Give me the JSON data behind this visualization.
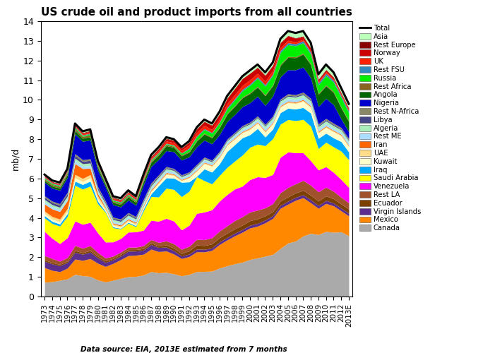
{
  "title": "US crude oil and product imports from all countries",
  "ylabel": "mb/d",
  "datasource": "Data source: EIA, 2013E estimated from 7 months",
  "years": [
    1973,
    1974,
    1975,
    1976,
    1977,
    1978,
    1979,
    1980,
    1981,
    1982,
    1983,
    1984,
    1985,
    1986,
    1987,
    1988,
    1989,
    1990,
    1991,
    1992,
    1993,
    1994,
    1995,
    1996,
    1997,
    1998,
    1999,
    2000,
    2001,
    2002,
    2003,
    2004,
    2005,
    2006,
    2007,
    2008,
    2009,
    2010,
    2011,
    2012,
    2013
  ],
  "series": {
    "Canada": [
      0.5,
      0.55,
      0.6,
      0.62,
      0.65,
      0.68,
      0.62,
      0.52,
      0.5,
      0.55,
      0.6,
      0.63,
      0.68,
      0.72,
      0.75,
      0.8,
      0.88,
      0.92,
      0.98,
      1.05,
      1.1,
      1.18,
      1.25,
      1.35,
      1.45,
      1.5,
      1.55,
      1.62,
      1.68,
      1.75,
      1.85,
      2.0,
      2.18,
      2.28,
      2.45,
      2.52,
      2.55,
      2.6,
      2.72,
      2.85,
      2.68
    ],
    "Mexico": [
      0.52,
      0.42,
      0.32,
      0.38,
      0.45,
      0.5,
      0.55,
      0.53,
      0.53,
      0.57,
      0.62,
      0.67,
      0.72,
      0.7,
      0.68,
      0.72,
      0.78,
      0.8,
      0.82,
      0.85,
      0.88,
      0.92,
      1.02,
      1.12,
      1.22,
      1.28,
      1.35,
      1.38,
      1.38,
      1.45,
      1.58,
      1.68,
      1.58,
      1.68,
      1.55,
      1.22,
      1.08,
      1.12,
      1.12,
      0.92,
      0.88
    ],
    "Virgin Islands": [
      0.22,
      0.24,
      0.22,
      0.2,
      0.2,
      0.2,
      0.2,
      0.17,
      0.14,
      0.12,
      0.12,
      0.14,
      0.14,
      0.14,
      0.14,
      0.14,
      0.14,
      0.14,
      0.12,
      0.12,
      0.12,
      0.12,
      0.12,
      0.12,
      0.12,
      0.12,
      0.12,
      0.12,
      0.12,
      0.12,
      0.12,
      0.12,
      0.12,
      0.12,
      0.12,
      0.12,
      0.12,
      0.12,
      0.12,
      0.12,
      0.12
    ],
    "Ecuador": [
      0.05,
      0.05,
      0.05,
      0.05,
      0.05,
      0.05,
      0.05,
      0.05,
      0.05,
      0.05,
      0.05,
      0.05,
      0.05,
      0.05,
      0.05,
      0.05,
      0.08,
      0.1,
      0.12,
      0.15,
      0.18,
      0.18,
      0.2,
      0.2,
      0.2,
      0.2,
      0.2,
      0.2,
      0.2,
      0.18,
      0.18,
      0.18,
      0.18,
      0.18,
      0.18,
      0.18,
      0.18,
      0.18,
      0.18,
      0.18,
      0.18
    ],
    "Rest LA": [
      0.15,
      0.15,
      0.12,
      0.12,
      0.15,
      0.15,
      0.15,
      0.12,
      0.1,
      0.08,
      0.08,
      0.08,
      0.08,
      0.1,
      0.1,
      0.12,
      0.15,
      0.18,
      0.2,
      0.22,
      0.25,
      0.28,
      0.3,
      0.32,
      0.35,
      0.38,
      0.38,
      0.38,
      0.38,
      0.35,
      0.35,
      0.35,
      0.38,
      0.38,
      0.4,
      0.4,
      0.38,
      0.35,
      0.32,
      0.3,
      0.28
    ],
    "Venezuela": [
      0.85,
      0.75,
      0.65,
      0.7,
      0.72,
      0.78,
      0.72,
      0.62,
      0.55,
      0.48,
      0.45,
      0.48,
      0.52,
      0.52,
      0.58,
      0.72,
      0.82,
      0.92,
      0.92,
      1.0,
      1.15,
      1.3,
      1.38,
      1.42,
      1.48,
      1.45,
      1.38,
      1.42,
      1.45,
      1.32,
      1.28,
      1.48,
      1.45,
      1.28,
      1.12,
      0.98,
      0.9,
      0.82,
      0.8,
      0.78,
      0.68
    ],
    "Saudi Arabia": [
      0.48,
      0.55,
      0.65,
      0.75,
      1.05,
      1.15,
      1.12,
      0.92,
      1.02,
      0.48,
      0.32,
      0.28,
      0.18,
      0.65,
      0.72,
      0.82,
      1.1,
      1.28,
      1.58,
      1.62,
      1.62,
      1.48,
      1.28,
      1.22,
      1.28,
      1.28,
      1.4,
      1.42,
      1.42,
      1.38,
      1.58,
      1.38,
      1.32,
      1.32,
      1.35,
      1.38,
      0.88,
      0.98,
      1.08,
      1.25,
      1.22
    ],
    "Iraq": [
      0.08,
      0.08,
      0.08,
      0.1,
      0.12,
      0.15,
      0.15,
      0.08,
      0.03,
      0.03,
      0.02,
      0.03,
      0.03,
      0.06,
      0.08,
      0.38,
      0.38,
      0.46,
      0.68,
      0.45,
      0.02,
      0.55,
      0.58,
      0.55,
      0.75,
      0.75,
      0.78,
      0.55,
      0.68,
      0.38,
      0.42,
      0.48,
      0.46,
      0.48,
      0.48,
      0.52,
      0.42,
      0.36,
      0.38,
      0.42,
      0.35
    ],
    "Kuwait": [
      0.08,
      0.08,
      0.08,
      0.08,
      0.1,
      0.1,
      0.1,
      0.08,
      0.06,
      0.06,
      0.04,
      0.04,
      0.04,
      0.06,
      0.06,
      0.08,
      0.12,
      0.1,
      0.06,
      0.18,
      0.22,
      0.25,
      0.28,
      0.28,
      0.28,
      0.25,
      0.22,
      0.22,
      0.22,
      0.2,
      0.22,
      0.22,
      0.22,
      0.22,
      0.25,
      0.22,
      0.22,
      0.22,
      0.25,
      0.25,
      0.22
    ],
    "UAE": [
      0.08,
      0.1,
      0.1,
      0.1,
      0.1,
      0.1,
      0.1,
      0.08,
      0.06,
      0.04,
      0.04,
      0.04,
      0.04,
      0.04,
      0.04,
      0.04,
      0.04,
      0.04,
      0.04,
      0.04,
      0.04,
      0.04,
      0.04,
      0.04,
      0.04,
      0.04,
      0.04,
      0.04,
      0.04,
      0.04,
      0.04,
      0.04,
      0.04,
      0.04,
      0.04,
      0.04,
      0.04,
      0.04,
      0.04,
      0.04,
      0.04
    ],
    "Iran": [
      0.25,
      0.28,
      0.28,
      0.28,
      0.32,
      0.32,
      0.2,
      0.08,
      0.03,
      0.03,
      0.03,
      0.03,
      0.03,
      0.03,
      0.03,
      0.03,
      0.03,
      0.03,
      0.03,
      0.03,
      0.03,
      0.03,
      0.03,
      0.03,
      0.03,
      0.03,
      0.03,
      0.03,
      0.03,
      0.03,
      0.03,
      0.03,
      0.03,
      0.03,
      0.03,
      0.03,
      0.03,
      0.03,
      0.03,
      0.03,
      0.03
    ],
    "Rest ME": [
      0.08,
      0.08,
      0.08,
      0.08,
      0.08,
      0.08,
      0.08,
      0.06,
      0.06,
      0.06,
      0.06,
      0.06,
      0.06,
      0.06,
      0.06,
      0.08,
      0.08,
      0.08,
      0.08,
      0.08,
      0.1,
      0.1,
      0.1,
      0.1,
      0.1,
      0.1,
      0.1,
      0.1,
      0.1,
      0.1,
      0.1,
      0.1,
      0.1,
      0.1,
      0.1,
      0.1,
      0.1,
      0.1,
      0.1,
      0.1,
      0.1
    ],
    "Algeria": [
      0.08,
      0.08,
      0.08,
      0.08,
      0.08,
      0.08,
      0.08,
      0.06,
      0.06,
      0.06,
      0.06,
      0.06,
      0.06,
      0.06,
      0.06,
      0.06,
      0.06,
      0.06,
      0.06,
      0.06,
      0.06,
      0.06,
      0.06,
      0.06,
      0.06,
      0.06,
      0.08,
      0.08,
      0.08,
      0.1,
      0.1,
      0.1,
      0.1,
      0.1,
      0.1,
      0.1,
      0.1,
      0.1,
      0.1,
      0.1,
      0.1
    ],
    "Libya": [
      0.08,
      0.08,
      0.08,
      0.08,
      0.08,
      0.08,
      0.08,
      0.06,
      0.05,
      0.04,
      0.04,
      0.04,
      0.04,
      0.04,
      0.04,
      0.04,
      0.04,
      0.04,
      0.04,
      0.04,
      0.04,
      0.04,
      0.04,
      0.04,
      0.04,
      0.04,
      0.04,
      0.04,
      0.04,
      0.04,
      0.04,
      0.04,
      0.04,
      0.04,
      0.04,
      0.04,
      0.04,
      0.04,
      0.04,
      0.04,
      0.04
    ],
    "Rest N-Africa": [
      0.05,
      0.05,
      0.05,
      0.05,
      0.05,
      0.05,
      0.05,
      0.04,
      0.04,
      0.04,
      0.04,
      0.04,
      0.04,
      0.04,
      0.04,
      0.04,
      0.04,
      0.04,
      0.04,
      0.04,
      0.04,
      0.04,
      0.04,
      0.04,
      0.04,
      0.04,
      0.04,
      0.04,
      0.04,
      0.04,
      0.04,
      0.04,
      0.06,
      0.06,
      0.06,
      0.06,
      0.06,
      0.06,
      0.06,
      0.06,
      0.06
    ],
    "Nigeria": [
      0.48,
      0.48,
      0.5,
      0.52,
      0.58,
      0.6,
      0.58,
      0.52,
      0.48,
      0.42,
      0.4,
      0.4,
      0.38,
      0.48,
      0.5,
      0.52,
      0.58,
      0.68,
      0.7,
      0.72,
      0.78,
      0.8,
      0.8,
      0.8,
      0.82,
      0.82,
      0.85,
      0.85,
      0.85,
      0.82,
      0.88,
      0.92,
      0.98,
      1.02,
      1.02,
      0.82,
      0.72,
      0.8,
      0.78,
      0.38,
      0.3
    ],
    "Angola": [
      0.06,
      0.08,
      0.08,
      0.1,
      0.1,
      0.1,
      0.1,
      0.08,
      0.08,
      0.08,
      0.08,
      0.1,
      0.1,
      0.12,
      0.12,
      0.15,
      0.18,
      0.18,
      0.2,
      0.22,
      0.25,
      0.28,
      0.3,
      0.32,
      0.35,
      0.38,
      0.4,
      0.4,
      0.4,
      0.42,
      0.45,
      0.48,
      0.5,
      0.5,
      0.52,
      0.52,
      0.5,
      0.5,
      0.52,
      0.48,
      0.45
    ],
    "Rest Africa": [
      0.06,
      0.06,
      0.06,
      0.06,
      0.06,
      0.06,
      0.06,
      0.05,
      0.04,
      0.04,
      0.04,
      0.04,
      0.04,
      0.04,
      0.04,
      0.04,
      0.04,
      0.04,
      0.04,
      0.04,
      0.04,
      0.04,
      0.04,
      0.04,
      0.04,
      0.04,
      0.04,
      0.04,
      0.04,
      0.04,
      0.04,
      0.04,
      0.04,
      0.04,
      0.04,
      0.04,
      0.04,
      0.04,
      0.04,
      0.04,
      0.04
    ],
    "Russia": [
      0.03,
      0.03,
      0.03,
      0.03,
      0.03,
      0.03,
      0.03,
      0.03,
      0.03,
      0.03,
      0.03,
      0.03,
      0.03,
      0.03,
      0.03,
      0.03,
      0.03,
      0.03,
      0.08,
      0.12,
      0.15,
      0.18,
      0.18,
      0.2,
      0.22,
      0.25,
      0.28,
      0.32,
      0.35,
      0.38,
      0.42,
      0.5,
      0.48,
      0.45,
      0.42,
      0.38,
      0.35,
      0.38,
      0.4,
      0.42,
      0.35
    ],
    "Rest FSU": [
      0.02,
      0.02,
      0.02,
      0.02,
      0.02,
      0.02,
      0.02,
      0.02,
      0.02,
      0.02,
      0.02,
      0.02,
      0.02,
      0.02,
      0.02,
      0.02,
      0.02,
      0.02,
      0.02,
      0.04,
      0.04,
      0.04,
      0.04,
      0.04,
      0.06,
      0.06,
      0.06,
      0.06,
      0.06,
      0.06,
      0.06,
      0.08,
      0.08,
      0.08,
      0.08,
      0.08,
      0.08,
      0.08,
      0.08,
      0.08,
      0.08
    ],
    "UK": [
      0.02,
      0.02,
      0.02,
      0.02,
      0.02,
      0.04,
      0.04,
      0.04,
      0.04,
      0.04,
      0.04,
      0.04,
      0.04,
      0.04,
      0.04,
      0.06,
      0.08,
      0.1,
      0.12,
      0.15,
      0.15,
      0.15,
      0.15,
      0.15,
      0.18,
      0.18,
      0.18,
      0.18,
      0.15,
      0.15,
      0.15,
      0.12,
      0.1,
      0.08,
      0.06,
      0.06,
      0.06,
      0.06,
      0.06,
      0.06,
      0.06
    ],
    "Norway": [
      0.02,
      0.02,
      0.02,
      0.02,
      0.02,
      0.02,
      0.02,
      0.02,
      0.02,
      0.02,
      0.02,
      0.02,
      0.02,
      0.04,
      0.04,
      0.06,
      0.08,
      0.08,
      0.1,
      0.12,
      0.15,
      0.18,
      0.2,
      0.22,
      0.25,
      0.28,
      0.3,
      0.28,
      0.25,
      0.25,
      0.22,
      0.2,
      0.18,
      0.15,
      0.12,
      0.1,
      0.08,
      0.08,
      0.06,
      0.06,
      0.06
    ],
    "Rest Europe": [
      0.02,
      0.02,
      0.02,
      0.02,
      0.02,
      0.02,
      0.02,
      0.02,
      0.02,
      0.02,
      0.02,
      0.02,
      0.02,
      0.02,
      0.02,
      0.02,
      0.02,
      0.02,
      0.02,
      0.02,
      0.02,
      0.02,
      0.02,
      0.02,
      0.02,
      0.02,
      0.02,
      0.02,
      0.02,
      0.02,
      0.02,
      0.02,
      0.02,
      0.02,
      0.02,
      0.02,
      0.02,
      0.02,
      0.02,
      0.02,
      0.02
    ],
    "Asia": [
      0.04,
      0.04,
      0.04,
      0.04,
      0.04,
      0.04,
      0.04,
      0.04,
      0.04,
      0.04,
      0.04,
      0.04,
      0.04,
      0.04,
      0.04,
      0.04,
      0.04,
      0.04,
      0.04,
      0.04,
      0.06,
      0.08,
      0.08,
      0.1,
      0.1,
      0.1,
      0.1,
      0.12,
      0.12,
      0.12,
      0.12,
      0.15,
      0.18,
      0.2,
      0.2,
      0.2,
      0.2,
      0.2,
      0.2,
      0.2,
      0.18
    ]
  },
  "total": [
    6.2,
    5.9,
    5.8,
    6.5,
    8.8,
    8.4,
    8.5,
    6.9,
    6.0,
    5.1,
    5.0,
    5.4,
    5.1,
    6.2,
    7.2,
    7.6,
    8.1,
    8.0,
    7.6,
    7.9,
    8.6,
    9.0,
    8.8,
    9.4,
    10.2,
    10.7,
    11.2,
    11.5,
    11.8,
    11.4,
    11.9,
    13.1,
    13.5,
    13.4,
    13.5,
    12.9,
    11.3,
    11.8,
    11.4,
    10.6,
    9.8
  ],
  "colors": {
    "Canada": "#aaaaaa",
    "Mexico": "#ff8800",
    "Virgin Islands": "#5b2d8e",
    "Ecuador": "#7b3f00",
    "Rest LA": "#a0522d",
    "Venezuela": "#ff00ff",
    "Saudi Arabia": "#ffff00",
    "Iraq": "#00aaff",
    "Kuwait": "#ffffcc",
    "UAE": "#ffdd88",
    "Iran": "#ff6600",
    "Rest ME": "#aaddff",
    "Algeria": "#aaeebb",
    "Libya": "#444488",
    "Rest N-Africa": "#888866",
    "Nigeria": "#0000cc",
    "Angola": "#006600",
    "Rest Africa": "#886622",
    "Russia": "#00ee00",
    "Rest FSU": "#3388bb",
    "UK": "#ff2200",
    "Norway": "#cc0000",
    "Rest Europe": "#880000",
    "Asia": "#bbffbb"
  },
  "stack_order": [
    "Canada",
    "Mexico",
    "Virgin Islands",
    "Ecuador",
    "Rest LA",
    "Venezuela",
    "Saudi Arabia",
    "Iraq",
    "Kuwait",
    "UAE",
    "Iran",
    "Rest ME",
    "Algeria",
    "Libya",
    "Rest N-Africa",
    "Nigeria",
    "Angola",
    "Rest Africa",
    "Russia",
    "Rest FSU",
    "UK",
    "Norway",
    "Rest Europe",
    "Asia"
  ],
  "legend_order": [
    "Total",
    "Asia",
    "Rest Europe",
    "Norway",
    "UK",
    "Rest FSU",
    "Russia",
    "Rest Africa",
    "Angola",
    "Nigeria",
    "Rest N-Africa",
    "Libya",
    "Algeria",
    "Rest ME",
    "Iran",
    "UAE",
    "Kuwait",
    "Iraq",
    "Saudi Arabia",
    "Venezuela",
    "Rest LA",
    "Ecuador",
    "Virgin Islands",
    "Mexico",
    "Canada"
  ],
  "ylim": [
    0,
    14
  ],
  "yticks": [
    0,
    1,
    2,
    3,
    4,
    5,
    6,
    7,
    8,
    9,
    10,
    11,
    12,
    13,
    14
  ]
}
